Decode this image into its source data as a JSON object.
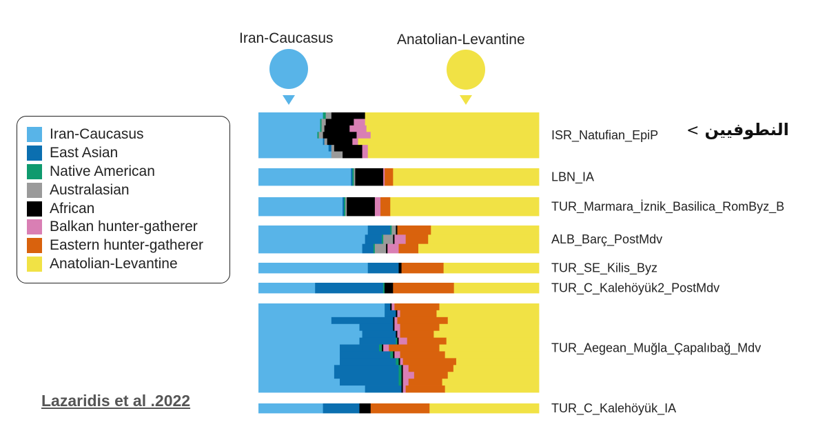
{
  "pins": {
    "iran": {
      "label": "Iran-Caucasus",
      "color": "#58b4e8"
    },
    "anatolia": {
      "label": "Anatolian-Levantine",
      "color": "#f1e245"
    }
  },
  "legend": {
    "items": [
      {
        "label": "Iran-Caucasus",
        "color": "#58b4e8"
      },
      {
        "label": "East Asian",
        "color": "#0b6fb0"
      },
      {
        "label": "Native American",
        "color": "#0f9a6e"
      },
      {
        "label": "Australasian",
        "color": "#9a9a9a"
      },
      {
        "label": "African",
        "color": "#000000"
      },
      {
        "label": "Balkan hunter-gatherer",
        "color": "#d97fb4"
      },
      {
        "label": "Eastern hunter-gatherer",
        "color": "#d9620d"
      },
      {
        "label": "Anatolian-Levantine",
        "color": "#f1e245"
      }
    ]
  },
  "annotation": {
    "arabic_text": "النطوفيين",
    "arrow": "<"
  },
  "citation": "Lazaridis et al .2022",
  "chart_data": {
    "type": "stacked-bar (ADMIXTURE ancestry proportions)",
    "components": [
      "Iran-Caucasus",
      "East Asian",
      "Native American",
      "Australasian",
      "African",
      "Balkan hunter-gatherer",
      "Eastern hunter-gatherer",
      "Anatolian-Levantine"
    ],
    "colors": [
      "#58b4e8",
      "#0b6fb0",
      "#0f9a6e",
      "#9a9a9a",
      "#000000",
      "#d97fb4",
      "#d9620d",
      "#f1e245"
    ],
    "groups": [
      {
        "label": "ISR_Natufian_EpiP",
        "samples": [
          [
            0.23,
            0,
            0.01,
            0.02,
            0.12,
            0,
            0,
            0.62
          ],
          [
            0.22,
            0,
            0.005,
            0.015,
            0.1,
            0.04,
            0,
            0.62
          ],
          [
            0.22,
            0,
            0.005,
            0.01,
            0.09,
            0.06,
            0,
            0.615
          ],
          [
            0.21,
            0,
            0.005,
            0.015,
            0.12,
            0.05,
            0,
            0.6
          ],
          [
            0.23,
            0.005,
            0,
            0.01,
            0.09,
            0.02,
            0,
            0.645
          ],
          [
            0.25,
            0.01,
            0,
            0.01,
            0.1,
            0.02,
            0,
            0.61
          ],
          [
            0.26,
            0,
            0,
            0.04,
            0.07,
            0.02,
            0,
            0.61
          ]
        ]
      },
      {
        "label": "LBN_IA",
        "samples": [
          [
            0.33,
            0.005,
            0.005,
            0.005,
            0.1,
            0.005,
            0.03,
            0.52
          ]
        ]
      },
      {
        "label": "TUR_Marmara_İznik_Basilica_RomByz_B",
        "samples": [
          [
            0.3,
            0.005,
            0.005,
            0.005,
            0.1,
            0.02,
            0.035,
            0.53
          ]
        ]
      },
      {
        "label": "ALB_Barç_PostMdv",
        "samples": [
          [
            0.39,
            0.08,
            0.005,
            0.015,
            0.005,
            0,
            0.12,
            0.385
          ],
          [
            0.38,
            0.06,
            0.005,
            0.035,
            0.005,
            0.04,
            0.08,
            0.395
          ],
          [
            0.37,
            0.04,
            0.005,
            0.04,
            0.005,
            0.04,
            0.07,
            0.43
          ]
        ]
      },
      {
        "label": "TUR_SE_Kilis_Byz",
        "samples": [
          [
            0.39,
            0.11,
            0,
            0,
            0.01,
            0,
            0.15,
            0.34
          ]
        ]
      },
      {
        "label": "TUR_C_Kalehöyük2_PostMdv",
        "samples": [
          [
            0.2,
            0.24,
            0.005,
            0,
            0.03,
            0,
            0.215,
            0.3
          ]
        ]
      },
      {
        "label": "TUR_Aegean_Muğla_Çapalıbağ_Mdv",
        "samples": [
          [
            0.45,
            0.02,
            0,
            0,
            0.005,
            0.01,
            0.16,
            0.355
          ],
          [
            0.45,
            0.04,
            0,
            0,
            0.005,
            0.01,
            0.13,
            0.365
          ],
          [
            0.26,
            0.22,
            0,
            0,
            0.005,
            0.01,
            0.18,
            0.325
          ],
          [
            0.36,
            0.12,
            0,
            0,
            0.005,
            0.02,
            0.14,
            0.355
          ],
          [
            0.37,
            0.12,
            0,
            0,
            0.005,
            0.01,
            0.12,
            0.375
          ],
          [
            0.36,
            0.13,
            0.005,
            0,
            0.005,
            0.03,
            0.14,
            0.33
          ],
          [
            0.29,
            0.14,
            0.01,
            0,
            0.005,
            0.02,
            0.18,
            0.355
          ],
          [
            0.29,
            0.18,
            0.01,
            0,
            0.005,
            0.02,
            0.16,
            0.335
          ],
          [
            0.29,
            0.2,
            0.01,
            0,
            0.005,
            0.01,
            0.19,
            0.295
          ],
          [
            0.27,
            0.23,
            0.01,
            0,
            0.005,
            0.02,
            0.16,
            0.305
          ],
          [
            0.27,
            0.23,
            0.01,
            0,
            0.005,
            0.04,
            0.12,
            0.325
          ],
          [
            0.29,
            0.21,
            0.01,
            0,
            0.005,
            0.02,
            0.12,
            0.345
          ],
          [
            0.38,
            0.13,
            0,
            0,
            0.005,
            0.01,
            0.14,
            0.335
          ]
        ]
      },
      {
        "label": "TUR_C_Kalehöyük_IA",
        "samples": [
          [
            0.23,
            0.13,
            0,
            0,
            0.04,
            0,
            0.21,
            0.39
          ]
        ]
      }
    ]
  }
}
